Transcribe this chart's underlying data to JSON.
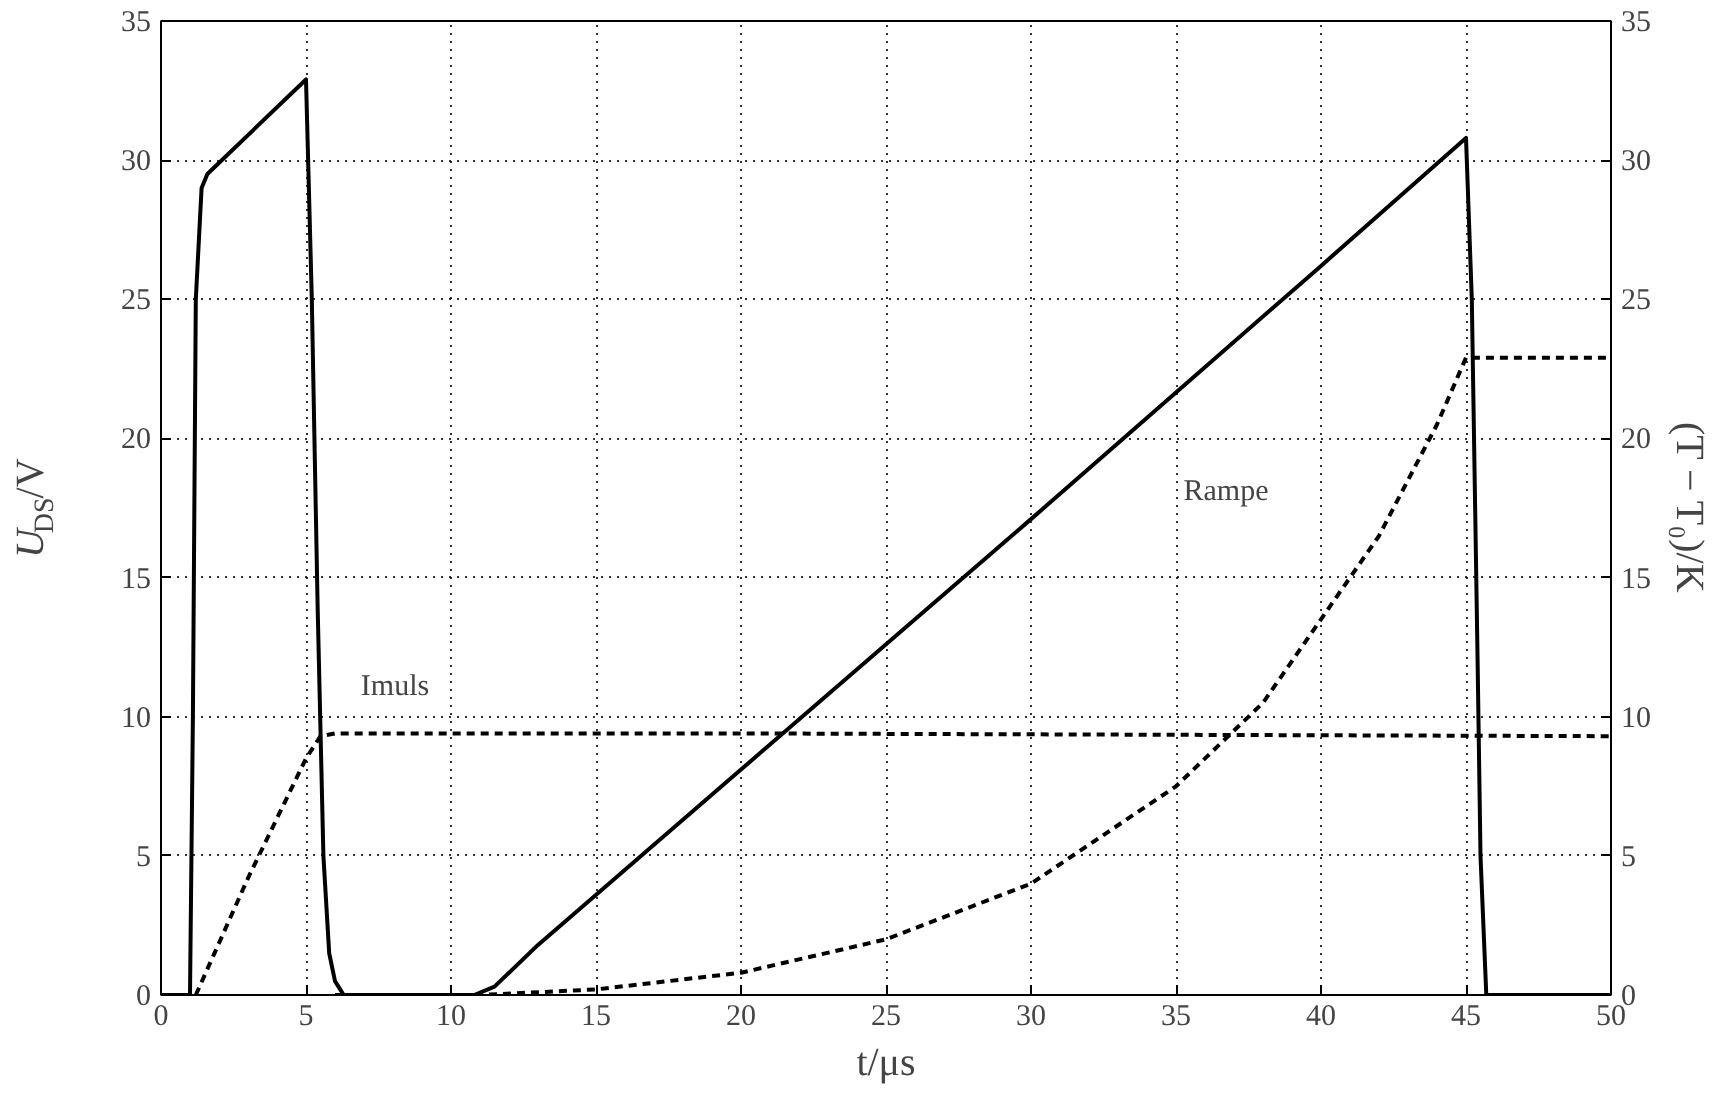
{
  "chart_data": {
    "type": "line",
    "xlabel": "t/μs",
    "ylabel": "U$_{DS}$/V",
    "y2label": "(T − T₀)/K",
    "xlim": [
      0,
      50
    ],
    "xticks": [
      0,
      5,
      10,
      15,
      20,
      25,
      30,
      35,
      40,
      45,
      50
    ],
    "ylim": [
      0,
      35
    ],
    "yticks": [
      0,
      5,
      10,
      15,
      20,
      25,
      30,
      35
    ],
    "y2lim": [
      0,
      35
    ],
    "y2ticks": [
      0,
      5,
      10,
      15,
      20,
      25,
      30,
      35
    ],
    "grid": true,
    "series": [
      {
        "color": "#000000",
        "line_style": "solid",
        "x": [
          0,
          1,
          1.1,
          1.2,
          1.4,
          1.6,
          5,
          5.2,
          5.4,
          5.6,
          5.8,
          6,
          6.3,
          10.8,
          11.5,
          12,
          13,
          20,
          30,
          40,
          45,
          45.2,
          45.4,
          45.5,
          45.7,
          50
        ],
        "values": [
          0,
          0,
          10,
          25,
          29,
          29.5,
          32.9,
          25,
          14,
          5,
          1.5,
          0.5,
          0,
          0,
          0.3,
          0.8,
          1.8,
          8.1,
          17.1,
          26.2,
          30.8,
          25,
          12,
          5,
          0,
          0
        ]
      },
      {
        "color": "#000000",
        "line_style": "dashed",
        "axis": "y2",
        "x": [
          1.2,
          3,
          5,
          5.5,
          6,
          20,
          35,
          50
        ],
        "values": [
          0,
          4.2,
          8.5,
          9.3,
          9.4,
          9.4,
          9.35,
          9.3
        ]
      },
      {
        "color": "#000000",
        "line_style": "dashed",
        "axis": "y2",
        "x": [
          6,
          11,
          15,
          20,
          25,
          30,
          35,
          38,
          40,
          42,
          43,
          44,
          45,
          50
        ],
        "values": [
          0,
          0,
          0.2,
          0.8,
          2,
          4,
          7.5,
          10.5,
          13.5,
          16.5,
          18.5,
          20.5,
          22.9,
          22.9
        ]
      }
    ],
    "annotations": [
      "Imuls",
      "Rampe"
    ]
  }
}
